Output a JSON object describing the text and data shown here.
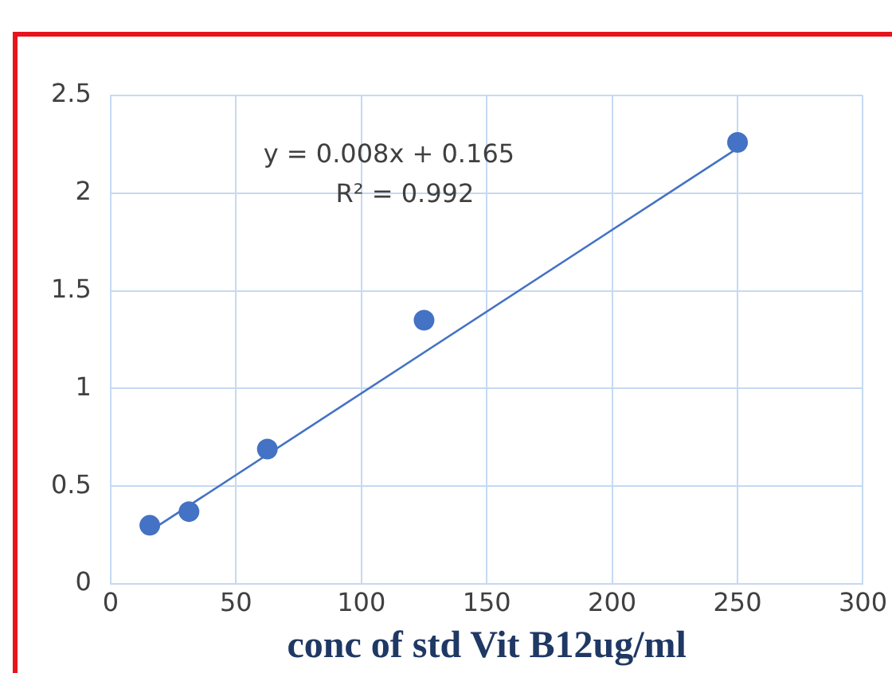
{
  "chart_data": {
    "type": "scatter",
    "xlabel": "conc of std Vit B12ug/ml",
    "annotations": [
      "y = 0.008x + 0.165",
      "R² = 0.992"
    ],
    "series": [
      {
        "color": "#4472c4",
        "x": [
          15.625,
          31.25,
          62.5,
          125,
          250
        ],
        "values": [
          0.3,
          0.37,
          0.69,
          1.35,
          2.26
        ],
        "marker": "circle"
      },
      {
        "type": "line",
        "color": "#4472c4",
        "x": [
          15.625,
          250
        ],
        "values": [
          0.27,
          2.23
        ],
        "marker": "none"
      }
    ],
    "xlim": [
      0,
      300
    ],
    "xticks": [
      0,
      50,
      100,
      150,
      200,
      250,
      300
    ],
    "ylim": [
      0,
      2.5
    ],
    "yticks": [
      0,
      0.5,
      1,
      1.5,
      2,
      2.5
    ],
    "grid": true,
    "legend": false
  }
}
